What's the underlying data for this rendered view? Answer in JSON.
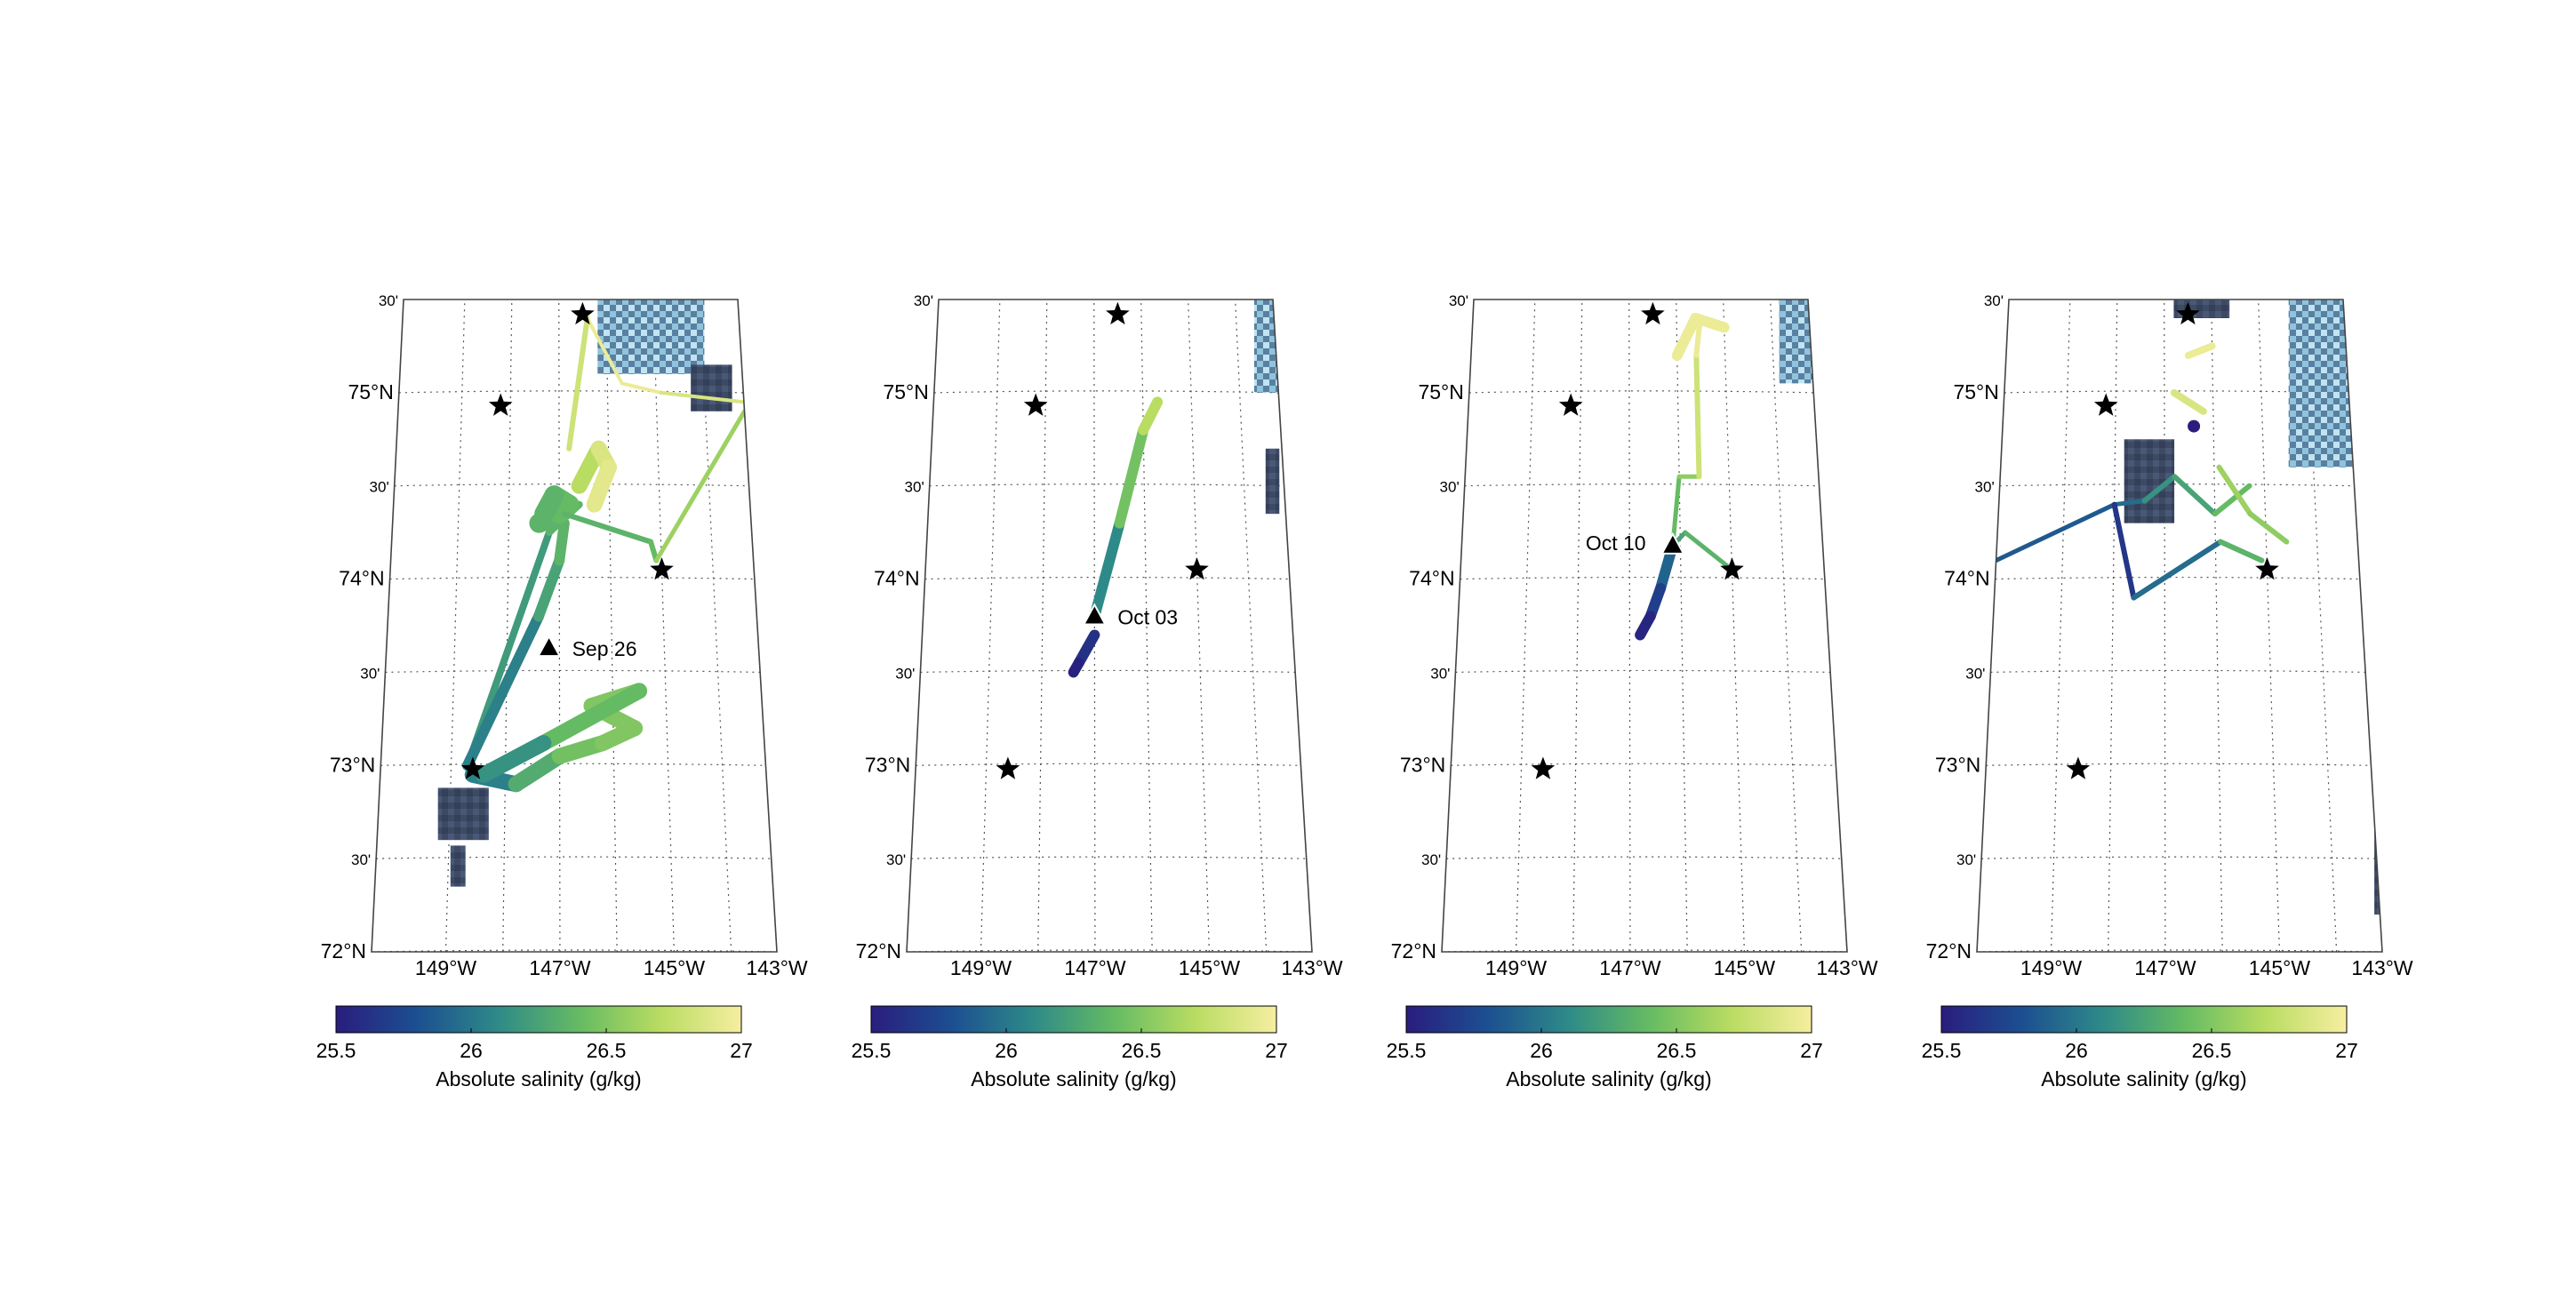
{
  "colorbar": {
    "label": "Absolute salinity (g/kg)",
    "ticks": [
      "25.5",
      "26",
      "26.5",
      "27"
    ],
    "min": 25.5,
    "max": 27,
    "stops": [
      "#2a1d7d",
      "#1c4f91",
      "#2e8a88",
      "#65bb63",
      "#b9dc62",
      "#f6eea0"
    ]
  },
  "axes": {
    "lon_labels": [
      "149°W",
      "147°W",
      "145°W",
      "143°W"
    ],
    "lat_labels": [
      "72°N",
      "30'",
      "73°N",
      "30'",
      "74°N",
      "30'",
      "75°N",
      "30'"
    ]
  },
  "colors": {
    "ice": "#3d4a64",
    "ice_bright": "#bfe4f2",
    "frame": "#444444"
  },
  "stars": [
    {
      "lon": -148.2,
      "lat": 74.93
    },
    {
      "lon": -146.5,
      "lat": 75.42
    },
    {
      "lon": -145.0,
      "lat": 74.05
    },
    {
      "lon": -148.6,
      "lat": 72.98
    }
  ],
  "panels": [
    {
      "marker": {
        "label": "Sep 26",
        "lon": -147.2,
        "lat": 73.63
      },
      "tracks": [
        {
          "points": [
            [
              -148.7,
              73.0
            ],
            [
              -147.2,
              74.25
            ],
            [
              -146.6,
              74.4
            ]
          ],
          "sal": [
            26.1,
            26.3,
            26.4
          ],
          "width": 8
        },
        {
          "points": [
            [
              -148.7,
              73.0
            ],
            [
              -147.4,
              73.8
            ],
            [
              -147.0,
              74.1
            ],
            [
              -146.9,
              74.3
            ]
          ],
          "sal": [
            25.9,
            26.2,
            26.3,
            26.4
          ],
          "width": 12
        },
        {
          "points": [
            [
              -148.6,
              72.95
            ],
            [
              -147.8,
              72.9
            ],
            [
              -147.0,
              73.05
            ],
            [
              -146.2,
              73.12
            ],
            [
              -145.6,
              73.2
            ],
            [
              -146.4,
              73.32
            ],
            [
              -145.5,
              73.4
            ],
            [
              -147.3,
              73.12
            ],
            [
              -148.4,
              72.95
            ]
          ],
          "sal": [
            25.9,
            26.2,
            26.4,
            26.5,
            26.5,
            26.5,
            26.5,
            26.3,
            26.0
          ],
          "width": 18
        },
        {
          "points": [
            [
              -147.4,
              74.3
            ],
            [
              -147.0,
              74.35
            ],
            [
              -146.8,
              74.4
            ],
            [
              -147.1,
              74.45
            ],
            [
              -147.3,
              74.35
            ]
          ],
          "sal": [
            26.3,
            26.4,
            26.4,
            26.4,
            26.3
          ],
          "width": 22
        },
        {
          "points": [
            [
              -146.9,
              74.35
            ],
            [
              -145.2,
              74.2
            ],
            [
              -145.1,
              74.1
            ]
          ],
          "sal": [
            26.3,
            26.4,
            26.4
          ],
          "width": 6
        },
        {
          "points": [
            [
              -145.1,
              74.1
            ],
            [
              -143.2,
              74.9
            ]
          ],
          "sal": [
            26.5,
            26.7
          ],
          "width": 5
        },
        {
          "points": [
            [
              -146.6,
              74.5
            ],
            [
              -146.2,
              74.7
            ],
            [
              -146.0,
              74.6
            ],
            [
              -146.3,
              74.4
            ]
          ],
          "sal": [
            26.6,
            26.8,
            26.9,
            26.9
          ],
          "width": 18
        },
        {
          "points": [
            [
              -146.8,
              74.7
            ],
            [
              -146.4,
              75.4
            ]
          ],
          "sal": [
            26.7,
            26.9
          ],
          "width": 6
        },
        {
          "points": [
            [
              -146.4,
              75.4
            ],
            [
              -145.7,
              75.05
            ],
            [
              -144.9,
              75.0
            ],
            [
              -143.2,
              74.95
            ]
          ],
          "sal": [
            26.9,
            27.0,
            26.9,
            26.8
          ],
          "width": 4
        }
      ],
      "ice": [
        {
          "lon": -149.2,
          "lat": 72.6,
          "w": 0.9,
          "h": 0.28
        },
        {
          "lon": -148.95,
          "lat": 72.35,
          "w": 0.25,
          "h": 0.22
        },
        {
          "lon": -146.2,
          "lat": 75.1,
          "w": 2.3,
          "h": 0.45,
          "bright": true
        },
        {
          "lon": -144.3,
          "lat": 74.9,
          "w": 0.9,
          "h": 0.25
        }
      ]
    },
    {
      "marker": {
        "label": "Oct 03",
        "lon": -147.0,
        "lat": 73.8
      },
      "tracks": [
        {
          "points": [
            [
              -147.0,
              73.7
            ],
            [
              -147.3,
              73.55
            ],
            [
              -147.4,
              73.5
            ]
          ],
          "sal": [
            25.7,
            25.55,
            25.5
          ],
          "width": 12
        },
        {
          "points": [
            [
              -147.0,
              73.8
            ],
            [
              -146.5,
              74.3
            ],
            [
              -146.0,
              74.8
            ],
            [
              -145.7,
              74.95
            ]
          ],
          "sal": [
            25.9,
            26.3,
            26.6,
            26.8
          ],
          "width": 12
        }
      ],
      "ice": [
        {
          "lon": -143.7,
          "lat": 75.0,
          "w": 0.8,
          "h": 0.5,
          "bright": true
        },
        {
          "lon": -143.6,
          "lat": 74.35,
          "w": 0.35,
          "h": 0.35
        }
      ]
    },
    {
      "marker": {
        "label": "Oct 10",
        "lon": -146.15,
        "lat": 74.18
      },
      "tracks": [
        {
          "points": [
            [
              -146.15,
              74.18
            ],
            [
              -146.4,
              73.95
            ],
            [
              -146.6,
              73.8
            ],
            [
              -146.8,
              73.7
            ]
          ],
          "sal": [
            26.0,
            25.8,
            25.6,
            25.5
          ],
          "width": 12
        },
        {
          "points": [
            [
              -146.15,
              74.18
            ],
            [
              -145.9,
              74.25
            ],
            [
              -145.0,
              74.05
            ]
          ],
          "sal": [
            26.2,
            26.3,
            26.4
          ],
          "width": 5
        },
        {
          "points": [
            [
              -146.15,
              74.18
            ],
            [
              -146.0,
              74.55
            ],
            [
              -145.6,
              74.55
            ]
          ],
          "sal": [
            26.3,
            26.5,
            26.6
          ],
          "width": 5
        },
        {
          "points": [
            [
              -145.6,
              74.55
            ],
            [
              -145.6,
              75.2
            ],
            [
              -145.5,
              75.4
            ]
          ],
          "sal": [
            26.7,
            26.9,
            27.0
          ],
          "width": 6
        },
        {
          "points": [
            [
              -146.0,
              75.2
            ],
            [
              -145.6,
              75.4
            ],
            [
              -145.0,
              75.35
            ]
          ],
          "sal": [
            26.9,
            27.0,
            26.9
          ],
          "width": 12
        }
      ],
      "ice": [
        {
          "lon": -143.9,
          "lat": 75.05,
          "w": 1.0,
          "h": 0.9,
          "bright": true
        }
      ]
    },
    {
      "marker": null,
      "tracks": [
        {
          "points": [
            [
              -150.3,
              74.1
            ],
            [
              -148.0,
              74.4
            ],
            [
              -147.4,
              74.42
            ]
          ],
          "sal": [
            25.8,
            25.9,
            26.0
          ],
          "width": 5
        },
        {
          "points": [
            [
              -147.4,
              74.42
            ],
            [
              -146.8,
              74.55
            ],
            [
              -146.0,
              74.35
            ],
            [
              -145.3,
              74.5
            ]
          ],
          "sal": [
            26.1,
            26.2,
            26.3,
            26.5
          ],
          "width": 6
        },
        {
          "points": [
            [
              -148.0,
              74.4
            ],
            [
              -147.6,
              73.9
            ],
            [
              -145.9,
              74.2
            ],
            [
              -145.1,
              74.1
            ]
          ],
          "sal": [
            25.6,
            25.7,
            26.2,
            26.5
          ],
          "width": 6
        },
        {
          "points": [
            [
              -145.9,
              74.6
            ],
            [
              -145.3,
              74.35
            ],
            [
              -144.6,
              74.2
            ]
          ],
          "sal": [
            26.6,
            26.6,
            26.5
          ],
          "width": 6
        },
        {
          "points": [
            [
              -146.8,
              75.0
            ],
            [
              -146.2,
              74.9
            ]
          ],
          "sal": [
            26.9,
            26.8
          ],
          "width": 8
        },
        {
          "points": [
            [
              -146.5,
              75.2
            ],
            [
              -146.0,
              75.25
            ]
          ],
          "sal": [
            27.0,
            26.9
          ],
          "width": 8
        }
      ],
      "dots": [
        {
          "lon": -146.4,
          "lat": 74.82,
          "sal": 25.5
        }
      ],
      "ice": [
        {
          "lon": -147.8,
          "lat": 74.3,
          "w": 1.0,
          "h": 0.45
        },
        {
          "lon": -144.5,
          "lat": 74.6,
          "w": 1.6,
          "h": 1.2,
          "bright": true
        },
        {
          "lon": -146.8,
          "lat": 75.4,
          "w": 1.2,
          "h": 0.25
        },
        {
          "lon": -143.3,
          "lat": 72.2,
          "w": 0.5,
          "h": 0.5
        }
      ]
    }
  ]
}
